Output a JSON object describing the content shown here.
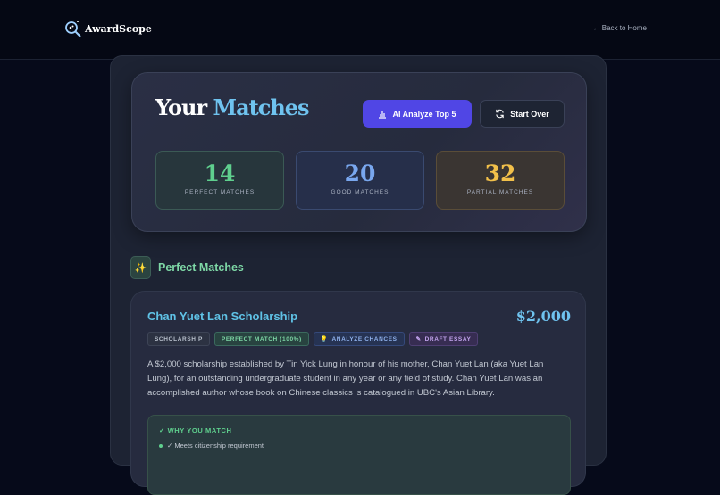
{
  "header": {
    "brand": "AwardScope",
    "back_link": "← Back to Home"
  },
  "hero": {
    "title_part1": "Your",
    "title_part2": "Matches",
    "analyze_button": "AI Analyze Top 5",
    "start_over_button": "Start Over"
  },
  "stats": [
    {
      "value": "14",
      "label": "PERFECT MATCHES"
    },
    {
      "value": "20",
      "label": "GOOD MATCHES"
    },
    {
      "value": "32",
      "label": "PARTIAL MATCHES"
    }
  ],
  "section": {
    "title": "Perfect Matches",
    "icon": "sparkles-icon"
  },
  "card": {
    "title": "Chan Yuet Lan Scholarship",
    "amount": "$2,000",
    "tags": [
      "SCHOLARSHIP",
      "PERFECT MATCH (100%)",
      "ANALYZE CHANCES",
      "DRAFT ESSAY"
    ],
    "description": "A $2,000 scholarship established by Tin Yick Lung in honour of his mother, Chan Yuet Lan (aka Yuet Lan Lung), for an outstanding undergraduate student in any year or any field of study. Chan Yuet Lan was an accomplished author whose book on Chinese classics is catalogued in UBC's Asian Library.",
    "why_title": "WHY YOU MATCH",
    "why_items": [
      "✓ Meets citizenship requirement"
    ]
  }
}
